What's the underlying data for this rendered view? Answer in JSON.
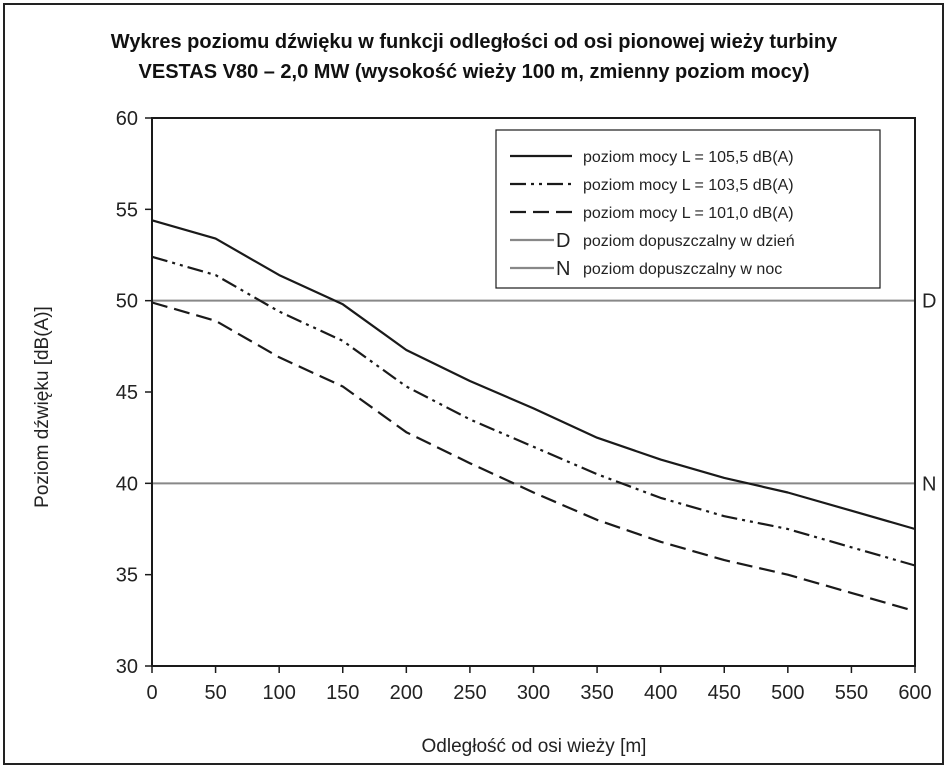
{
  "chart_data": {
    "type": "line",
    "title_line1": "Wykres poziomu dźwięku w funkcji odległości od osi pionowej wieży turbiny",
    "title_line2": "VESTAS V80 – 2,0 MW (wysokość wieży 100 m, zmienny poziom mocy)",
    "xlabel": "Odległość od osi wieży [m]",
    "ylabel": "Poziom dźwięku [dB(A)]",
    "xlim": [
      0,
      600
    ],
    "ylim": [
      30,
      60
    ],
    "xticks": [
      0,
      50,
      100,
      150,
      200,
      250,
      300,
      350,
      400,
      450,
      500,
      550,
      600
    ],
    "yticks": [
      30,
      35,
      40,
      45,
      50,
      55,
      60
    ],
    "grid": false,
    "legend_position": "top-right",
    "series": [
      {
        "name": "poziom mocy L = 105,5 dB(A)",
        "style": "solid",
        "color": "#1a1a1a",
        "x": [
          0,
          50,
          100,
          150,
          200,
          250,
          300,
          350,
          400,
          450,
          500,
          550,
          600
        ],
        "y": [
          54.4,
          53.4,
          51.4,
          49.8,
          47.3,
          45.6,
          44.1,
          42.5,
          41.3,
          40.3,
          39.5,
          38.5,
          37.5
        ]
      },
      {
        "name": "poziom mocy L = 103,5 dB(A)",
        "style": "dash-dot-dot",
        "color": "#1a1a1a",
        "x": [
          0,
          50,
          100,
          150,
          200,
          250,
          300,
          350,
          400,
          450,
          500,
          550,
          600
        ],
        "y": [
          52.4,
          51.4,
          49.4,
          47.8,
          45.3,
          43.5,
          42.0,
          40.5,
          39.2,
          38.2,
          37.5,
          36.5,
          35.5
        ]
      },
      {
        "name": "poziom mocy L = 101,0 dB(A)",
        "style": "dashed",
        "color": "#1a1a1a",
        "x": [
          0,
          50,
          100,
          150,
          200,
          250,
          300,
          350,
          400,
          450,
          500,
          550,
          600
        ],
        "y": [
          49.9,
          48.9,
          46.9,
          45.3,
          42.8,
          41.1,
          39.5,
          38.0,
          36.8,
          35.8,
          35.0,
          34.0,
          33.0
        ]
      }
    ],
    "reference_lines": [
      {
        "name": "poziom dopuszczalny w dzień",
        "marker": "D",
        "y": 50,
        "color": "#888888"
      },
      {
        "name": "poziom dopuszczalny w noc",
        "marker": "N",
        "y": 40,
        "color": "#888888"
      }
    ]
  }
}
